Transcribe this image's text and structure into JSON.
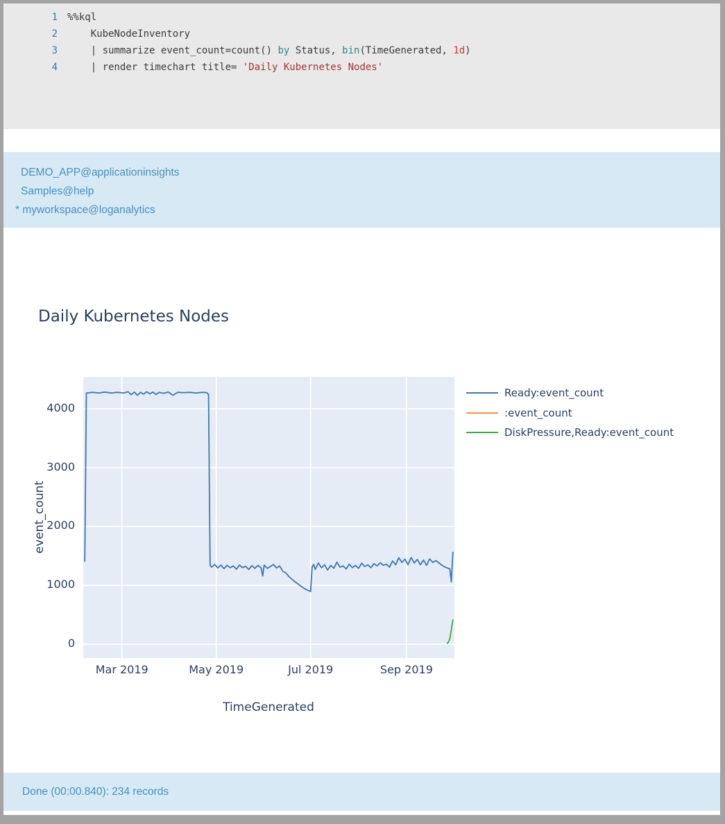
{
  "colors": {
    "window_border": "#a3a3a3",
    "code_bg": "#e9e9e9",
    "panel_bg": "#d7e9f4",
    "panel_text": "#4691bd",
    "chart_text": "#2a3f5f",
    "plot_bg": "#e5ecf6",
    "grid": "#ffffff",
    "line_number": "#2f7cb5"
  },
  "code_cell": {
    "language": "kql",
    "lines": [
      {
        "num": "1",
        "tokens": [
          [
            "%%kql",
            "d"
          ]
        ]
      },
      {
        "num": "2",
        "tokens": [
          [
            "    KubeNodeInventory",
            "d"
          ]
        ]
      },
      {
        "num": "3",
        "tokens": [
          [
            "    | summarize event_count=count() ",
            "d"
          ],
          [
            "by",
            "k"
          ],
          [
            " Status, ",
            "d"
          ],
          [
            "bin",
            "k"
          ],
          [
            "(TimeGenerated, ",
            "d"
          ],
          [
            "1d",
            "n"
          ],
          [
            ")",
            "d"
          ]
        ]
      },
      {
        "num": "4",
        "tokens": [
          [
            "    | render timechart title= ",
            "d"
          ],
          [
            "'Daily Kubernetes Nodes'",
            "s"
          ]
        ]
      }
    ]
  },
  "info_panel": {
    "lines": [
      "DEMO_APP@applicationinsights",
      "Samples@help",
      "* myworkspace@loganalytics"
    ]
  },
  "status_bar": {
    "text": "Done (00:00.840): 234 records"
  },
  "chart_data": {
    "type": "line",
    "title": "Daily Kubernetes Nodes",
    "xlabel": "TimeGenerated",
    "ylabel": "event_count",
    "x_range": [
      "2019-02-04",
      "2019-10-02"
    ],
    "ylim": [
      -236,
      4542
    ],
    "grid": true,
    "legend_position": "right",
    "x_ticks": [
      {
        "date": "2019-03-01",
        "label": "Mar 2019"
      },
      {
        "date": "2019-05-01",
        "label": "May 2019"
      },
      {
        "date": "2019-07-01",
        "label": "Jul 2019"
      },
      {
        "date": "2019-09-01",
        "label": "Sep 2019"
      }
    ],
    "y_ticks": [
      0,
      1000,
      2000,
      3000,
      4000
    ],
    "series": [
      {
        "name": "Ready:event_count",
        "color": "#3b78b0",
        "points": [
          [
            "2019-02-05",
            1400
          ],
          [
            "2019-02-06",
            4270
          ],
          [
            "2019-02-10",
            4280
          ],
          [
            "2019-02-14",
            4270
          ],
          [
            "2019-02-18",
            4285
          ],
          [
            "2019-02-22",
            4270
          ],
          [
            "2019-02-26",
            4280
          ],
          [
            "2019-03-02",
            4270
          ],
          [
            "2019-03-05",
            4290
          ],
          [
            "2019-03-07",
            4240
          ],
          [
            "2019-03-09",
            4285
          ],
          [
            "2019-03-11",
            4230
          ],
          [
            "2019-03-13",
            4280
          ],
          [
            "2019-03-15",
            4250
          ],
          [
            "2019-03-17",
            4290
          ],
          [
            "2019-03-19",
            4255
          ],
          [
            "2019-03-21",
            4285
          ],
          [
            "2019-03-23",
            4245
          ],
          [
            "2019-03-25",
            4280
          ],
          [
            "2019-03-28",
            4265
          ],
          [
            "2019-03-31",
            4285
          ],
          [
            "2019-04-03",
            4230
          ],
          [
            "2019-04-06",
            4280
          ],
          [
            "2019-04-10",
            4275
          ],
          [
            "2019-04-14",
            4280
          ],
          [
            "2019-04-18",
            4270
          ],
          [
            "2019-04-22",
            4280
          ],
          [
            "2019-04-25",
            4275
          ],
          [
            "2019-04-26",
            4240
          ],
          [
            "2019-04-27",
            1340
          ],
          [
            "2019-04-28",
            1310
          ],
          [
            "2019-04-30",
            1355
          ],
          [
            "2019-05-02",
            1295
          ],
          [
            "2019-05-04",
            1345
          ],
          [
            "2019-05-06",
            1285
          ],
          [
            "2019-05-08",
            1340
          ],
          [
            "2019-05-10",
            1300
          ],
          [
            "2019-05-12",
            1330
          ],
          [
            "2019-05-14",
            1275
          ],
          [
            "2019-05-16",
            1345
          ],
          [
            "2019-05-18",
            1300
          ],
          [
            "2019-05-20",
            1325
          ],
          [
            "2019-05-22",
            1270
          ],
          [
            "2019-05-24",
            1335
          ],
          [
            "2019-05-26",
            1290
          ],
          [
            "2019-05-28",
            1340
          ],
          [
            "2019-05-30",
            1295
          ],
          [
            "2019-05-31",
            1160
          ],
          [
            "2019-06-01",
            1345
          ],
          [
            "2019-06-03",
            1290
          ],
          [
            "2019-06-05",
            1320
          ],
          [
            "2019-06-07",
            1355
          ],
          [
            "2019-06-09",
            1295
          ],
          [
            "2019-06-11",
            1330
          ],
          [
            "2019-06-13",
            1240
          ],
          [
            "2019-06-15",
            1210
          ],
          [
            "2019-06-17",
            1150
          ],
          [
            "2019-06-20",
            1080
          ],
          [
            "2019-06-24",
            1000
          ],
          [
            "2019-06-28",
            930
          ],
          [
            "2019-07-01",
            895
          ],
          [
            "2019-07-02",
            1310
          ],
          [
            "2019-07-03",
            1355
          ],
          [
            "2019-07-04",
            1270
          ],
          [
            "2019-07-06",
            1380
          ],
          [
            "2019-07-08",
            1300
          ],
          [
            "2019-07-10",
            1350
          ],
          [
            "2019-07-12",
            1260
          ],
          [
            "2019-07-14",
            1340
          ],
          [
            "2019-07-16",
            1290
          ],
          [
            "2019-07-18",
            1395
          ],
          [
            "2019-07-20",
            1310
          ],
          [
            "2019-07-22",
            1330
          ],
          [
            "2019-07-24",
            1280
          ],
          [
            "2019-07-26",
            1360
          ],
          [
            "2019-07-28",
            1300
          ],
          [
            "2019-07-30",
            1340
          ],
          [
            "2019-08-01",
            1290
          ],
          [
            "2019-08-03",
            1375
          ],
          [
            "2019-08-05",
            1320
          ],
          [
            "2019-08-07",
            1350
          ],
          [
            "2019-08-09",
            1300
          ],
          [
            "2019-08-11",
            1370
          ],
          [
            "2019-08-13",
            1330
          ],
          [
            "2019-08-15",
            1385
          ],
          [
            "2019-08-17",
            1340
          ],
          [
            "2019-08-19",
            1360
          ],
          [
            "2019-08-21",
            1310
          ],
          [
            "2019-08-23",
            1415
          ],
          [
            "2019-08-25",
            1350
          ],
          [
            "2019-08-27",
            1470
          ],
          [
            "2019-08-29",
            1390
          ],
          [
            "2019-08-31",
            1445
          ],
          [
            "2019-09-02",
            1350
          ],
          [
            "2019-09-04",
            1475
          ],
          [
            "2019-09-06",
            1380
          ],
          [
            "2019-09-08",
            1440
          ],
          [
            "2019-09-10",
            1350
          ],
          [
            "2019-09-12",
            1430
          ],
          [
            "2019-09-14",
            1340
          ],
          [
            "2019-09-16",
            1450
          ],
          [
            "2019-09-18",
            1390
          ],
          [
            "2019-09-20",
            1420
          ],
          [
            "2019-09-22",
            1380
          ],
          [
            "2019-09-24",
            1340
          ],
          [
            "2019-09-26",
            1310
          ],
          [
            "2019-09-28",
            1290
          ],
          [
            "2019-09-29",
            1280
          ],
          [
            "2019-09-30",
            1060
          ],
          [
            "2019-10-01",
            1570
          ]
        ]
      },
      {
        "name": ":event_count",
        "color": "#ff8f40",
        "points": []
      },
      {
        "name": "DiskPressure,Ready:event_count",
        "color": "#3cab47",
        "points": [
          [
            "2019-09-27",
            10
          ],
          [
            "2019-09-28",
            30
          ],
          [
            "2019-09-29",
            90
          ],
          [
            "2019-09-30",
            240
          ],
          [
            "2019-10-01",
            420
          ]
        ]
      }
    ]
  }
}
